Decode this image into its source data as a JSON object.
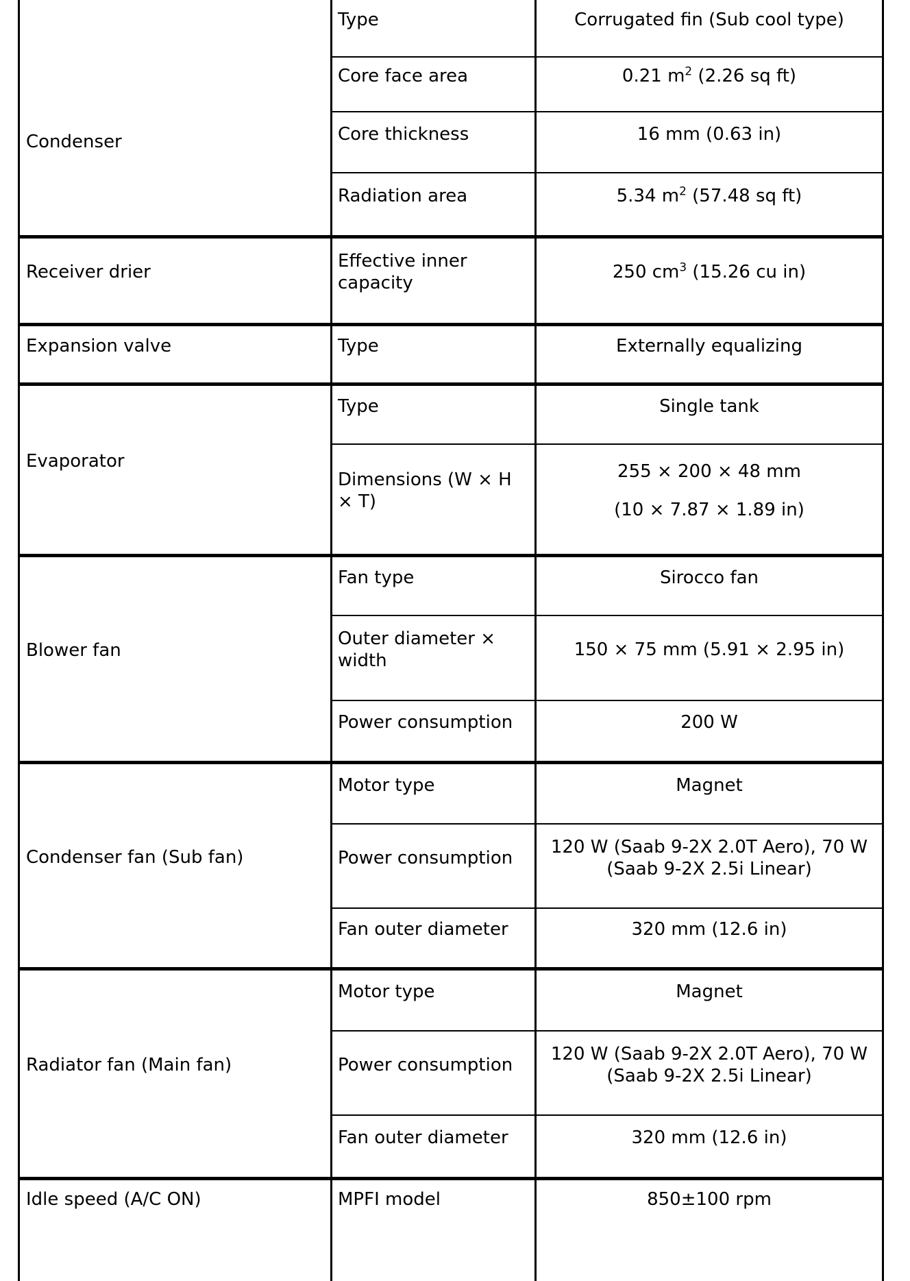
{
  "colors": {
    "text": "#000000",
    "border": "#000000",
    "background": "#ffffff"
  },
  "table": {
    "sections": [
      {
        "component": "Condenser",
        "rows": [
          {
            "property": "Type",
            "value": "Corrugated fin (Sub cool type)"
          },
          {
            "property": "Core face area",
            "value": "0.21 m^{2} (2.26 sq ft)"
          },
          {
            "property": "Core thickness",
            "value": "16 mm (0.63 in)"
          },
          {
            "property": "Radiation area",
            "value": "5.34 m^{2} (57.48 sq ft)"
          }
        ]
      },
      {
        "component": "Receiver drier",
        "rows": [
          {
            "property": "Effective inner capacity",
            "value": "250 cm^{3} (15.26 cu in)"
          }
        ]
      },
      {
        "component": "Expansion valve",
        "rows": [
          {
            "property": "Type",
            "value": "Externally equalizing"
          }
        ]
      },
      {
        "component": "Evaporator",
        "rows": [
          {
            "property": "Type",
            "value": "Single tank"
          },
          {
            "property": "Dimensions (W × H × T)",
            "value_lines": [
              "255 × 200 × 48 mm",
              "(10 × 7.87 × 1.89 in)"
            ]
          }
        ]
      },
      {
        "component": "Blower fan",
        "rows": [
          {
            "property": "Fan type",
            "value": "Sirocco fan"
          },
          {
            "property": "Outer diameter × width",
            "value": "150 × 75 mm (5.91 × 2.95 in)"
          },
          {
            "property": "Power consumption",
            "value": "200 W"
          }
        ]
      },
      {
        "component": "Condenser fan (Sub fan)",
        "rows": [
          {
            "property": "Motor type",
            "value": "Magnet"
          },
          {
            "property": "Power consumption",
            "value": "120 W (Saab 9-2X 2.0T Aero), 70 W (Saab 9-2X 2.5i Linear)"
          },
          {
            "property": "Fan outer diameter",
            "value": "320 mm (12.6 in)"
          }
        ]
      },
      {
        "component": "Radiator fan (Main fan)",
        "rows": [
          {
            "property": "Motor type",
            "value": "Magnet"
          },
          {
            "property": "Power consumption",
            "value": "120 W (Saab 9-2X 2.0T Aero), 70 W (Saab 9-2X 2.5i Linear)"
          },
          {
            "property": "Fan outer diameter",
            "value": "320 mm (12.6 in)"
          }
        ]
      },
      {
        "component": "Idle speed (A/C ON)",
        "rows": [
          {
            "property": "MPFI model",
            "value": "850±100 rpm"
          }
        ]
      }
    ]
  }
}
